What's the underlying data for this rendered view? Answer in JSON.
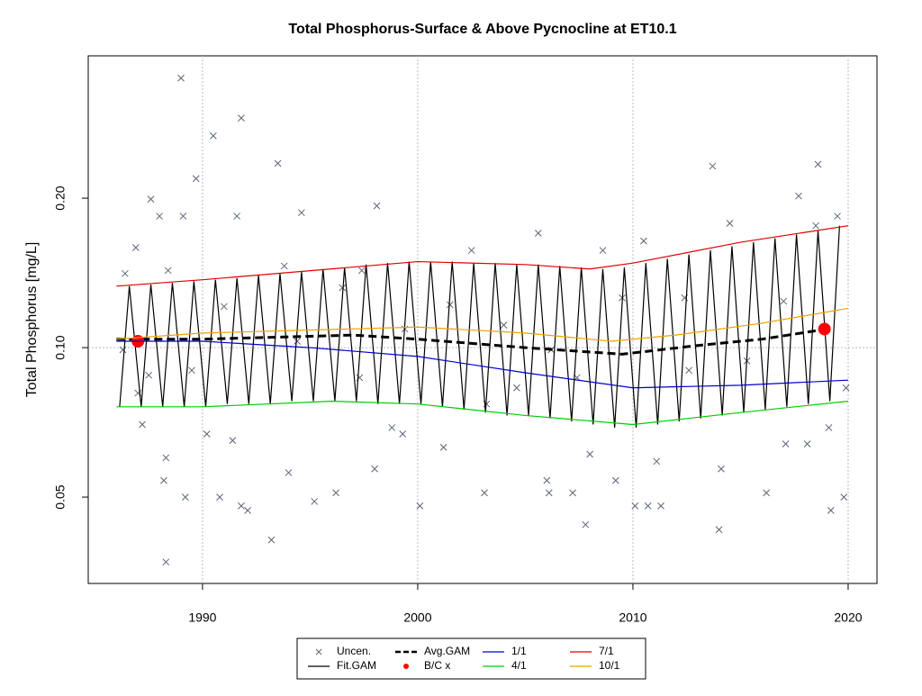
{
  "chart_data": {
    "type": "line",
    "title": "Total Phosphorus-Surface & Above Pycnocline at ET10.1",
    "y_label": "Total Phosphorus [mg/L]",
    "log_y": true,
    "xlim": [
      1984.69,
      2021.34
    ],
    "ylim": [
      0.0335,
      0.387
    ],
    "xticks": [
      1990,
      2000,
      2010,
      2020
    ],
    "yticks": [
      0.05,
      {
        "value": 0.1,
        "label": "0.10"
      },
      {
        "value": 0.2,
        "label": "0.20"
      }
    ],
    "x_grid": true,
    "hline": 0.1,
    "legend": "bottom",
    "series": [
      {
        "name": "Uncen.",
        "color": "#5a6478",
        "style": "cross",
        "x": [
          1989.0,
          1991.8,
          1990.5,
          1993.5,
          1989.7,
          1987.6,
          1988.0,
          1989.1,
          1991.6,
          1994.6,
          1998.1,
          2013.7,
          2018.6,
          2017.7,
          2019.5,
          2014.5,
          1986.9,
          1986.4,
          1988.4,
          1993.8,
          1997.4,
          2002.5,
          2005.6,
          2008.6,
          2010.5,
          1986.3,
          1987.5,
          1987.0,
          1987.2,
          1988.2,
          1988.3,
          1988.3,
          1989.2,
          1989.5,
          1990.2,
          1990.8,
          1991.4,
          1991.8,
          1992.1,
          1993.2,
          1994.0,
          1995.2,
          1996.2,
          1998.0,
          1998.8,
          1999.3,
          2000.1,
          2001.2,
          2003.1,
          2006.0,
          2006.1,
          2007.2,
          2007.8,
          2008.0,
          2009.2,
          2010.1,
          2010.7,
          2011.3,
          2011.1,
          2014.0,
          2014.1,
          2016.2,
          2017.1,
          2018.1,
          2019.2,
          2019.8,
          2019.1,
          2019.9,
          2006.2,
          1999.4,
          2001.5,
          2004.0,
          2007.4,
          2012.6,
          2015.3,
          2017.0,
          2018.5,
          2012.4,
          2009.5,
          1996.5,
          1991.0,
          1994.4,
          1997.3,
          2003.2,
          2004.6
        ],
        "values": [
          0.349,
          0.29,
          0.267,
          0.235,
          0.219,
          0.199,
          0.184,
          0.184,
          0.184,
          0.187,
          0.193,
          0.232,
          0.234,
          0.202,
          0.184,
          0.178,
          0.159,
          0.141,
          0.143,
          0.146,
          0.143,
          0.157,
          0.17,
          0.157,
          0.164,
          0.099,
          0.088,
          0.081,
          0.07,
          0.054,
          0.06,
          0.037,
          0.05,
          0.09,
          0.067,
          0.05,
          0.065,
          0.048,
          0.047,
          0.041,
          0.056,
          0.049,
          0.051,
          0.057,
          0.069,
          0.067,
          0.048,
          0.063,
          0.051,
          0.054,
          0.051,
          0.051,
          0.044,
          0.061,
          0.054,
          0.048,
          0.048,
          0.048,
          0.059,
          0.043,
          0.057,
          0.051,
          0.064,
          0.064,
          0.047,
          0.05,
          0.069,
          0.083,
          0.099,
          0.109,
          0.122,
          0.111,
          0.087,
          0.09,
          0.094,
          0.124,
          0.176,
          0.126,
          0.126,
          0.132,
          0.121,
          0.103,
          0.087,
          0.077,
          0.083
        ]
      },
      {
        "name": "Fit.GAM",
        "color": "#000000",
        "style": "line",
        "x": [
          1986.15,
          1986.6,
          1987.15,
          1987.6,
          1988.15,
          1988.6,
          1989.15,
          1989.6,
          1990.15,
          1990.6,
          1991.15,
          1991.6,
          1992.15,
          1992.6,
          1993.15,
          1993.6,
          1994.15,
          1994.6,
          1995.15,
          1995.6,
          1996.15,
          1996.6,
          1997.15,
          1997.6,
          1998.15,
          1998.6,
          1999.15,
          1999.6,
          2000.15,
          2000.6,
          2001.15,
          2001.6,
          2002.15,
          2002.6,
          2003.15,
          2003.6,
          2004.15,
          2004.6,
          2005.15,
          2005.6,
          2006.15,
          2006.6,
          2007.15,
          2007.6,
          2008.15,
          2008.6,
          2009.15,
          2009.6,
          2010.15,
          2010.6,
          2011.15,
          2011.6,
          2012.15,
          2012.6,
          2013.15,
          2013.6,
          2014.15,
          2014.6,
          2015.15,
          2015.6,
          2016.15,
          2016.6,
          2017.15,
          2017.6,
          2018.15,
          2018.6,
          2019.15,
          2019.6
        ],
        "values": [
          0.076,
          0.133,
          0.076,
          0.134,
          0.076,
          0.135,
          0.076,
          0.136,
          0.076,
          0.137,
          0.077,
          0.138,
          0.077,
          0.14,
          0.077,
          0.141,
          0.078,
          0.142,
          0.078,
          0.144,
          0.078,
          0.145,
          0.078,
          0.147,
          0.077,
          0.148,
          0.077,
          0.149,
          0.077,
          0.149,
          0.076,
          0.149,
          0.075,
          0.148,
          0.074,
          0.148,
          0.073,
          0.147,
          0.073,
          0.147,
          0.072,
          0.146,
          0.071,
          0.145,
          0.07,
          0.144,
          0.069,
          0.145,
          0.069,
          0.148,
          0.07,
          0.151,
          0.071,
          0.154,
          0.072,
          0.157,
          0.073,
          0.16,
          0.074,
          0.163,
          0.075,
          0.166,
          0.076,
          0.169,
          0.077,
          0.172,
          0.078,
          0.176
        ]
      },
      {
        "name": "Avg.GAM",
        "color": "#000000",
        "style": "dashed",
        "x": [
          1986,
          1990,
          1997,
          2000,
          2005,
          2009.5,
          2013,
          2016,
          2019
        ],
        "values": [
          0.104,
          0.104,
          0.106,
          0.104,
          0.1,
          0.097,
          0.101,
          0.104,
          0.109
        ]
      },
      {
        "name": "B/C x",
        "color": "#ff0000",
        "style": "dot",
        "x": [
          1987.0,
          2018.9
        ],
        "values": [
          0.103,
          0.109
        ]
      },
      {
        "name": "1/1",
        "color": "#0000cd",
        "style": "line",
        "x": [
          1986,
          1990,
          1995,
          2000,
          2005,
          2010,
          2015,
          2020
        ],
        "values": [
          0.103,
          0.103,
          0.1,
          0.096,
          0.089,
          0.083,
          0.084,
          0.086
        ]
      },
      {
        "name": "4/1",
        "color": "#00cc00",
        "style": "line",
        "x": [
          1986,
          1990,
          1996,
          2000,
          2005,
          2010,
          2015,
          2020
        ],
        "values": [
          0.076,
          0.076,
          0.078,
          0.077,
          0.073,
          0.07,
          0.074,
          0.078
        ]
      },
      {
        "name": "7/1",
        "color": "#e00000",
        "style": "line",
        "x": [
          1986,
          1990,
          2000,
          2005,
          2008,
          2010,
          2015,
          2020
        ],
        "values": [
          0.133,
          0.137,
          0.149,
          0.147,
          0.144,
          0.148,
          0.163,
          0.176
        ]
      },
      {
        "name": "10/1",
        "color": "#f0a000",
        "style": "line",
        "x": [
          1986,
          1990,
          2000,
          2005,
          2009,
          2012,
          2016,
          2020
        ],
        "values": [
          0.104,
          0.107,
          0.11,
          0.107,
          0.103,
          0.106,
          0.112,
          0.12
        ]
      }
    ]
  }
}
